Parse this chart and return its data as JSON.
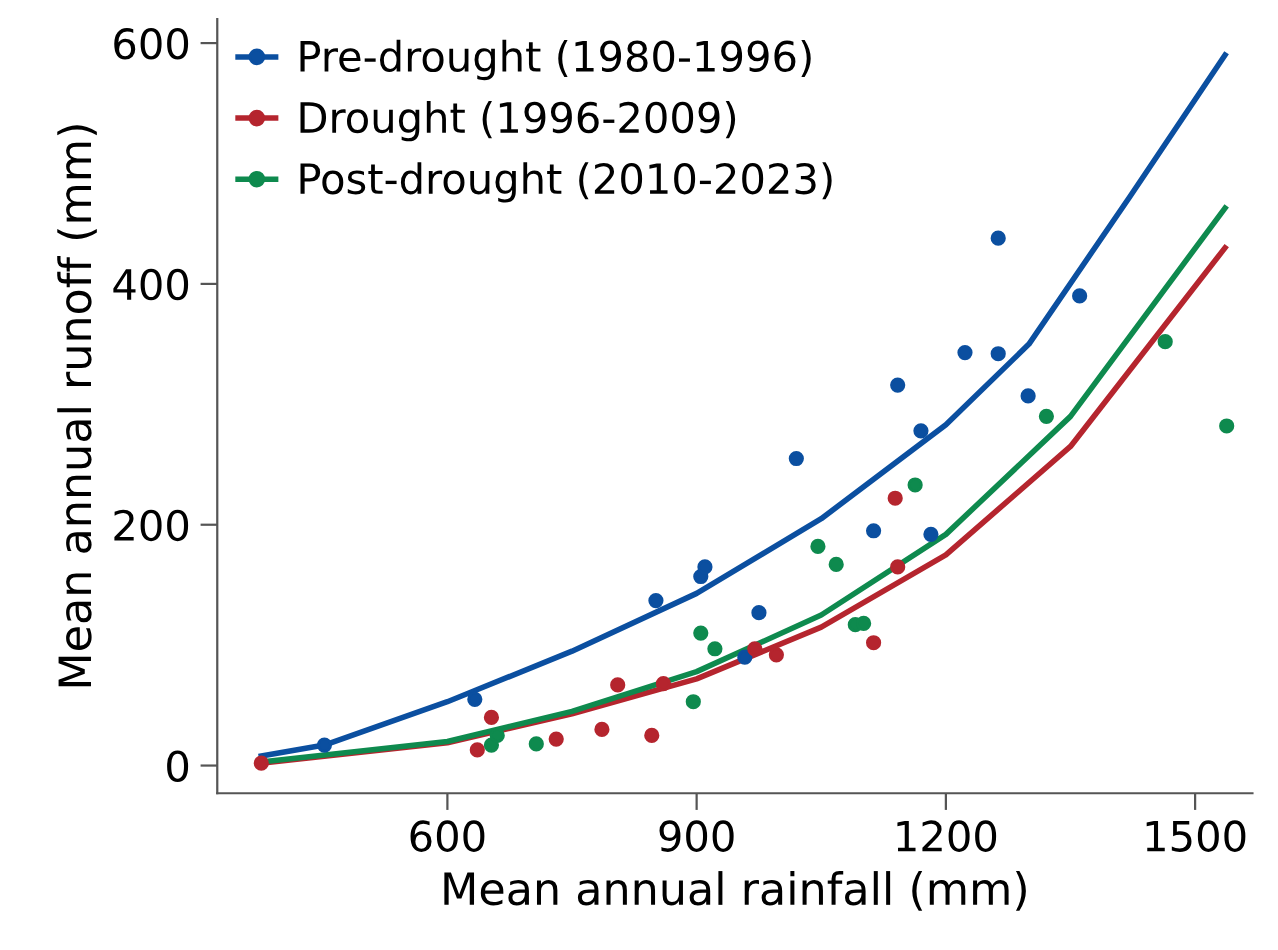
{
  "chart_data": {
    "type": "scatter",
    "xlabel": "Mean annual rainfall (mm)",
    "ylabel": "Mean annual runoff (mm)",
    "xlim": [
      323,
      1569
    ],
    "ylim": [
      -23,
      620
    ],
    "xticks": [
      600,
      900,
      1200,
      1500
    ],
    "yticks": [
      0,
      200,
      400,
      600
    ],
    "grid": false,
    "legend": "top left",
    "series": [
      {
        "type": "line",
        "marker": "none",
        "color": "#0b4fa0",
        "x": [
          376,
          452,
          600,
          750,
          900,
          1050,
          1200,
          1300,
          1421,
          1536
        ],
        "values": [
          8,
          17,
          53,
          95,
          143,
          205,
          283,
          350,
          472,
          590
        ]
      },
      {
        "type": "line",
        "marker": "none",
        "color": "#b5252e",
        "x": [
          376,
          600,
          750,
          900,
          1050,
          1200,
          1350,
          1536
        ],
        "values": [
          2,
          19,
          43,
          72,
          115,
          175,
          265,
          430
        ]
      },
      {
        "type": "line",
        "marker": "none",
        "color": "#0e8a4e",
        "x": [
          376,
          600,
          750,
          900,
          1050,
          1200,
          1350,
          1536
        ],
        "values": [
          3,
          20,
          45,
          78,
          125,
          192,
          290,
          463
        ]
      },
      {
        "name": "Pre-drought (1980-1996)",
        "marker": "circle",
        "color": "#0b4fa0",
        "x": [
          452,
          633,
          851,
          905,
          910,
          958,
          975,
          1020,
          1113,
          1142,
          1170,
          1182,
          1223,
          1263,
          1263,
          1299,
          1361
        ],
        "values": [
          17,
          55,
          137,
          157,
          165,
          90,
          127,
          255,
          195,
          316,
          278,
          192,
          343,
          438,
          342,
          307,
          390
        ]
      },
      {
        "name": "Drought (1996-2009)",
        "marker": "circle",
        "color": "#b5252e",
        "x": [
          376,
          636,
          653,
          731,
          786,
          805,
          846,
          860,
          970,
          996,
          1113,
          1139,
          1142
        ],
        "values": [
          2,
          13,
          40,
          22,
          30,
          67,
          25,
          68,
          97,
          92,
          102,
          222,
          165
        ]
      },
      {
        "name": "Post-drought (2010-2023)",
        "marker": "circle",
        "color": "#0e8a4e",
        "x": [
          653,
          660,
          707,
          896,
          905,
          922,
          1046,
          1068,
          1091,
          1101,
          1163,
          1321,
          1464,
          1538
        ],
        "values": [
          17,
          25,
          18,
          53,
          110,
          97,
          182,
          167,
          117,
          118,
          233,
          290,
          352,
          282
        ]
      }
    ]
  }
}
